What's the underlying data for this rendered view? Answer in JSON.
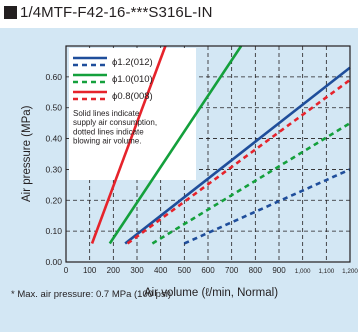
{
  "title": "1/4MTF-F42-16-***S316L-IN",
  "footnote": "* Max. air pressure: 0.7 MPa (100 psi)",
  "note": "Solid lines indicate supply air consumption, dotted lines indicate blowing air volume.",
  "colors": {
    "panel_bg": "#d3e7f4",
    "blue": "#1f4e9b",
    "green": "#14a03c",
    "red": "#e6232b",
    "text": "#231f20"
  },
  "chart_data": {
    "type": "line",
    "xlabel": "Air volume (ℓ/min, Normal)",
    "ylabel": "Air pressure (MPa)",
    "xlim": [
      0,
      1200
    ],
    "ylim": [
      0,
      0.7
    ],
    "grid": true,
    "x_ticks": [
      "0",
      "100",
      "200",
      "300",
      "400",
      "500",
      "600",
      "700",
      "800",
      "900",
      "1,000",
      "1,100",
      "1,200"
    ],
    "y_ticks": [
      "0.00",
      "0.10",
      "0.20",
      "0.30",
      "0.40",
      "0.50",
      "0.60"
    ],
    "legend": [
      {
        "label": "ϕ1.2(012)",
        "color": "#1f4e9b"
      },
      {
        "label": "ϕ1.0(010)",
        "color": "#14a03c"
      },
      {
        "label": "ϕ0.8(008)",
        "color": "#e6232b"
      }
    ],
    "series": [
      {
        "orifice": "ϕ1.2(012)",
        "style": "solid",
        "color": "#1f4e9b",
        "x": [
          250,
          1200
        ],
        "y": [
          0.06,
          0.63
        ]
      },
      {
        "orifice": "ϕ1.2(012)",
        "style": "dotted",
        "color": "#1f4e9b",
        "x": [
          500,
          1200
        ],
        "y": [
          0.06,
          0.3
        ]
      },
      {
        "orifice": "ϕ1.0(010)",
        "style": "solid",
        "color": "#14a03c",
        "x": [
          185,
          740
        ],
        "y": [
          0.06,
          0.7
        ]
      },
      {
        "orifice": "ϕ1.0(010)",
        "style": "dotted",
        "color": "#14a03c",
        "x": [
          365,
          1200
        ],
        "y": [
          0.06,
          0.45
        ]
      },
      {
        "orifice": "ϕ0.8(008)",
        "style": "solid",
        "color": "#e6232b",
        "x": [
          110,
          420
        ],
        "y": [
          0.06,
          0.7
        ]
      },
      {
        "orifice": "ϕ0.8(008)",
        "style": "dotted",
        "color": "#e6232b",
        "x": [
          260,
          1200
        ],
        "y": [
          0.06,
          0.59
        ]
      }
    ]
  }
}
